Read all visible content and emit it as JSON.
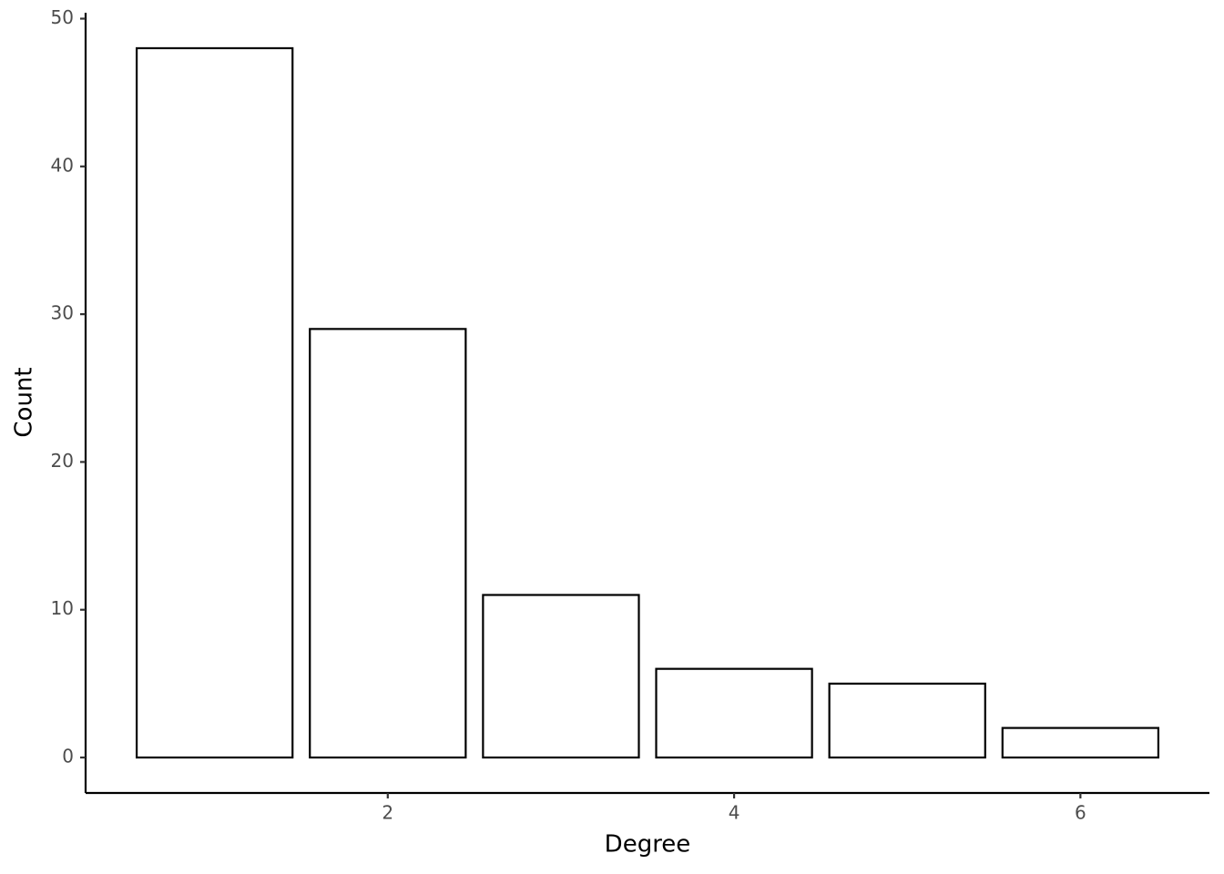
{
  "chart_data": {
    "type": "bar",
    "x_label": "Degree",
    "y_label": "Count",
    "x": [
      1,
      2,
      3,
      4,
      5,
      6
    ],
    "values": [
      48,
      29,
      11,
      6,
      5,
      2
    ],
    "color": "#ffffff",
    "edge_color": "#000000",
    "xlim": [
      0.255,
      6.745
    ],
    "xticks": [
      2,
      4,
      6
    ],
    "ylim": [
      -2.4,
      50.4
    ],
    "yticks": [
      0,
      10,
      20,
      30,
      40,
      50
    ],
    "grid": false
  }
}
